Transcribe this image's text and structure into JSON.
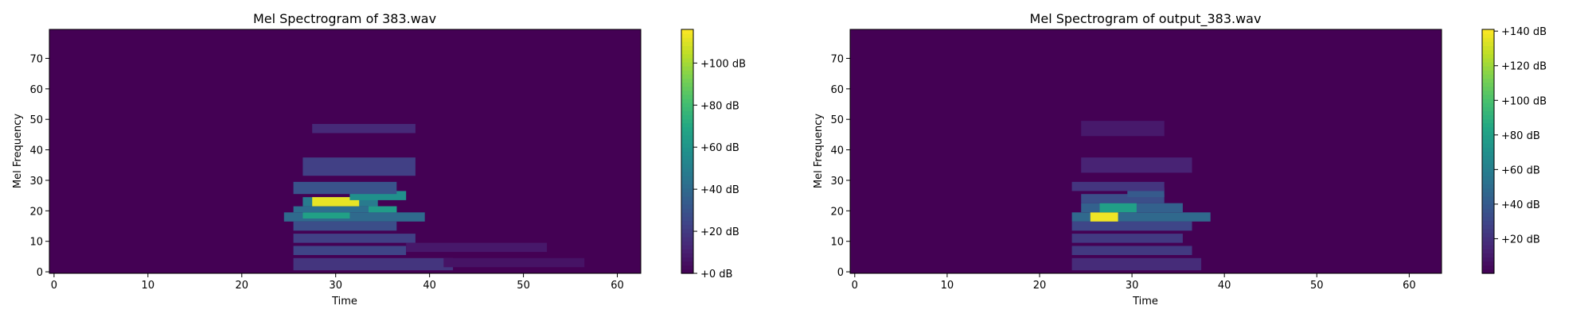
{
  "chart_data": [
    {
      "type": "heatmap",
      "title": "Mel Spectrogram of 383.wav",
      "xlabel": "Time",
      "ylabel": "Mel Frequency",
      "xlim": [
        -0.5,
        62.5
      ],
      "ylim": [
        -0.5,
        79.5
      ],
      "xticks": [
        "0",
        "10",
        "20",
        "30",
        "40",
        "50",
        "60"
      ],
      "yticks": [
        "0",
        "10",
        "20",
        "30",
        "40",
        "50",
        "60",
        "70"
      ],
      "colorbar": {
        "min": 0,
        "max": 116,
        "ticks": [
          "+0 dB",
          "+20 dB",
          "+40 dB",
          "+60 dB",
          "+80 dB",
          "+100 dB"
        ]
      },
      "bands": [
        {
          "y": [
            1,
            4
          ],
          "t": [
            26,
            42
          ],
          "db": 18
        },
        {
          "y": [
            6,
            8
          ],
          "t": [
            26,
            37
          ],
          "db": 24
        },
        {
          "y": [
            10,
            12
          ],
          "t": [
            26,
            38
          ],
          "db": 22
        },
        {
          "y": [
            14,
            16
          ],
          "t": [
            26,
            36
          ],
          "db": 28
        },
        {
          "y": [
            17,
            19
          ],
          "t": [
            25,
            39
          ],
          "db": 40
        },
        {
          "y": [
            18,
            19
          ],
          "t": [
            27,
            31
          ],
          "db": 66
        },
        {
          "y": [
            20,
            21
          ],
          "t": [
            26,
            36
          ],
          "db": 42
        },
        {
          "y": [
            20,
            21
          ],
          "t": [
            34,
            36
          ],
          "db": 64
        },
        {
          "y": [
            22,
            24
          ],
          "t": [
            27,
            34
          ],
          "db": 48
        },
        {
          "y": [
            22,
            24
          ],
          "t": [
            28,
            32
          ],
          "db": 112
        },
        {
          "y": [
            24,
            26
          ],
          "t": [
            32,
            37
          ],
          "db": 58
        },
        {
          "y": [
            26,
            29
          ],
          "t": [
            26,
            36
          ],
          "db": 30
        },
        {
          "y": [
            32,
            37
          ],
          "t": [
            27,
            38
          ],
          "db": 22
        },
        {
          "y": [
            46,
            48
          ],
          "t": [
            28,
            38
          ],
          "db": 14
        },
        {
          "y": [
            7,
            9
          ],
          "t": [
            38,
            52
          ],
          "db": 8
        },
        {
          "y": [
            2,
            4
          ],
          "t": [
            42,
            56
          ],
          "db": 6
        }
      ]
    },
    {
      "type": "heatmap",
      "title": "Mel Spectrogram of output_383.wav",
      "xlabel": "Time",
      "ylabel": "Mel Frequency",
      "xlim": [
        -0.5,
        63.5
      ],
      "ylim": [
        -0.5,
        79.5
      ],
      "xticks": [
        "0",
        "10",
        "20",
        "30",
        "40",
        "50",
        "60"
      ],
      "yticks": [
        "0",
        "10",
        "20",
        "30",
        "40",
        "50",
        "60",
        "70"
      ],
      "colorbar": {
        "min": 0,
        "max": 141,
        "ticks": [
          "+20 dB",
          "+40 dB",
          "+60 dB",
          "+80 dB",
          "+100 dB",
          "+120 dB",
          "+140 dB"
        ]
      },
      "bands": [
        {
          "y": [
            1,
            4
          ],
          "t": [
            24,
            37
          ],
          "db": 18
        },
        {
          "y": [
            6,
            8
          ],
          "t": [
            24,
            36
          ],
          "db": 24
        },
        {
          "y": [
            10,
            12
          ],
          "t": [
            24,
            35
          ],
          "db": 24
        },
        {
          "y": [
            14,
            16
          ],
          "t": [
            24,
            36
          ],
          "db": 30
        },
        {
          "y": [
            17,
            19
          ],
          "t": [
            24,
            38
          ],
          "db": 48
        },
        {
          "y": [
            17,
            19
          ],
          "t": [
            26,
            28
          ],
          "db": 138
        },
        {
          "y": [
            20,
            22
          ],
          "t": [
            25,
            35
          ],
          "db": 44
        },
        {
          "y": [
            20,
            22
          ],
          "t": [
            27,
            30
          ],
          "db": 80
        },
        {
          "y": [
            23,
            25
          ],
          "t": [
            25,
            33
          ],
          "db": 34
        },
        {
          "y": [
            25,
            27
          ],
          "t": [
            30,
            33
          ],
          "db": 40
        },
        {
          "y": [
            27,
            29
          ],
          "t": [
            24,
            33
          ],
          "db": 22
        },
        {
          "y": [
            33,
            37
          ],
          "t": [
            25,
            36
          ],
          "db": 14
        },
        {
          "y": [
            45,
            49
          ],
          "t": [
            25,
            33
          ],
          "db": 10
        }
      ]
    }
  ]
}
